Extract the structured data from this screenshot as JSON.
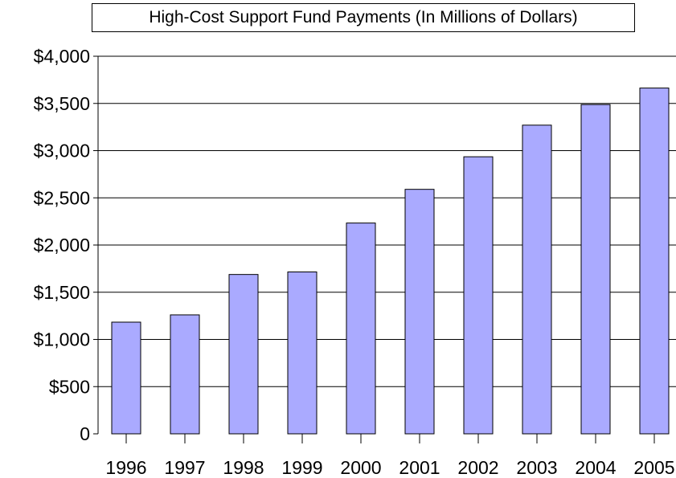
{
  "chart_data": {
    "type": "bar",
    "title": "High-Cost Support Fund Payments (In Millions of Dollars)",
    "xlabel": "",
    "ylabel": "",
    "categories": [
      "1996",
      "1997",
      "1998",
      "1999",
      "2000",
      "2001",
      "2002",
      "2003",
      "2004",
      "2005"
    ],
    "values": [
      1183,
      1260,
      1688,
      1715,
      2233,
      2590,
      2935,
      3270,
      3488,
      3663
    ],
    "ylim": [
      0,
      4000
    ],
    "yticks": [
      0,
      500,
      1000,
      1500,
      2000,
      2500,
      3000,
      3500,
      4000
    ],
    "ytick_labels": [
      "0",
      "$500",
      "$1,000",
      "$1,500",
      "$2,000",
      "$2,500",
      "$3,000",
      "$3,500",
      "$4,000"
    ],
    "grid": true,
    "legend": "none",
    "bar_color": "#aaaaff"
  }
}
